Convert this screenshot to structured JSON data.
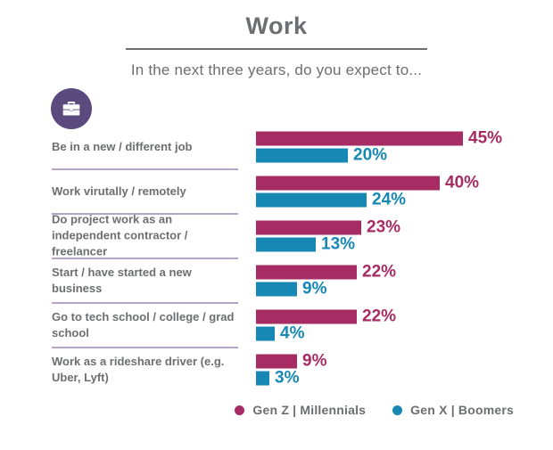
{
  "header": {
    "title": "Work",
    "subtitle": "In the next three years, do you expect to..."
  },
  "icon": {
    "name": "briefcase-icon",
    "circle_color": "#5b4a7e",
    "glyph_color": "#ffffff"
  },
  "colors": {
    "gen_z_millennials": "#a72c64",
    "gen_x_boomers": "#1787b4",
    "text_gray": "#6d6e71",
    "separator": "#b4a5c6"
  },
  "chart_data": {
    "type": "bar",
    "orientation": "horizontal",
    "title": "Work",
    "subtitle": "In the next three years, do you expect to...",
    "categories": [
      "Be in a new / different job",
      "Work virutally / remotely",
      "Do project work as an independent contractor / freelancer",
      "Start / have started a new business",
      "Go to tech school / college / grad school",
      "Work as a rideshare driver (e.g. Uber, Lyft)"
    ],
    "series": [
      {
        "name": "Gen Z | Millennials",
        "color": "#a72c64",
        "values": [
          45,
          40,
          23,
          22,
          22,
          9
        ]
      },
      {
        "name": "Gen X | Boomers",
        "color": "#1787b4",
        "values": [
          20,
          24,
          13,
          9,
          4,
          3
        ]
      }
    ],
    "value_suffix": "%",
    "xlim": [
      0,
      50
    ],
    "grid": false,
    "legend_position": "bottom-right"
  },
  "legend": [
    {
      "label": "Gen Z  |  Millennials",
      "color": "#a72c64"
    },
    {
      "label": "Gen X  |  Boomers",
      "color": "#1787b4"
    }
  ]
}
